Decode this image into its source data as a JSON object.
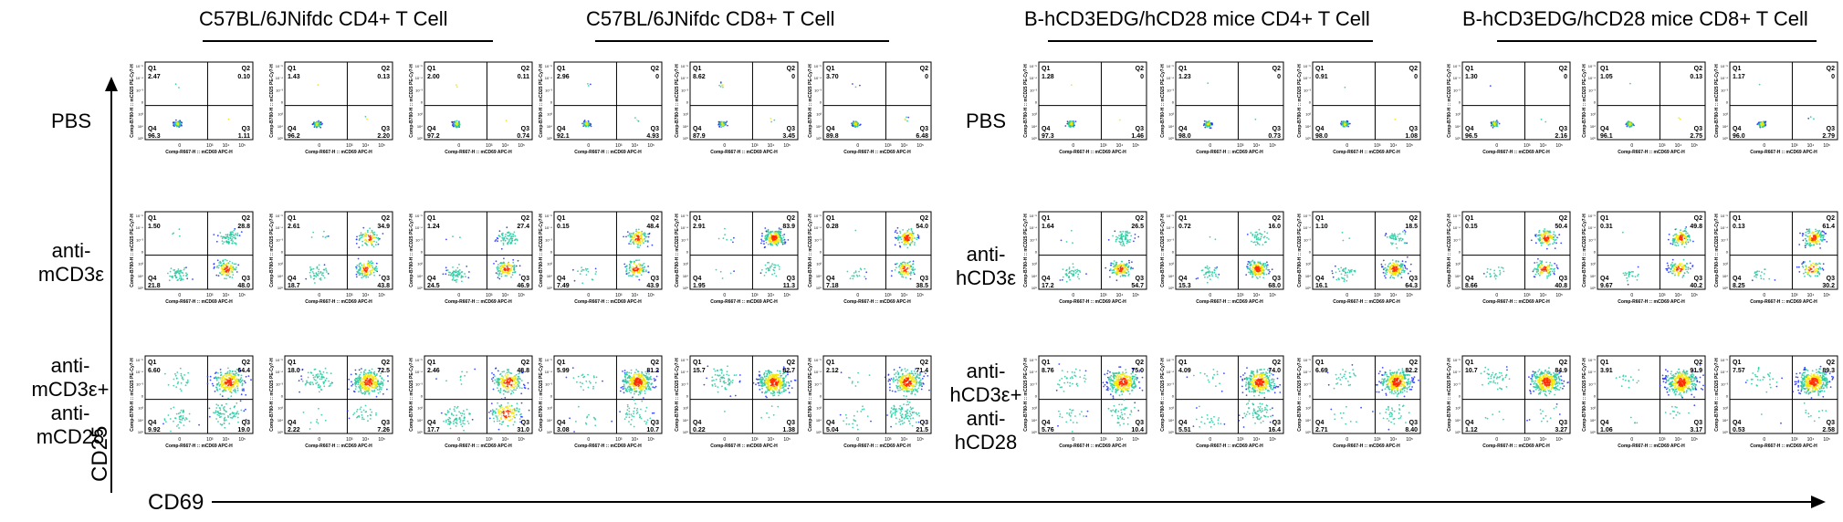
{
  "group_titles": [
    "C57BL/6JNifdc CD4+ T Cell",
    "C57BL/6JNifdc CD8+ T Cell",
    "B-hCD3EDG/hCD28 mice CD4+ T Cell",
    "B-hCD3EDG/hCD28 mice CD8+ T Cell"
  ],
  "row_labels_left": [
    [
      "PBS"
    ],
    [
      "anti-",
      "mCD3ε"
    ],
    [
      "anti-",
      "mCD3ε+",
      "anti-",
      "mCD28"
    ]
  ],
  "row_labels_right": [
    [
      "PBS"
    ],
    [
      "anti-",
      "hCD3ε"
    ],
    [
      "anti-",
      "hCD3ε+",
      "anti-",
      "hCD28"
    ]
  ],
  "y_axis_label": "CD25",
  "x_axis_label": "CD69",
  "plot_text": {
    "x_axis": "Comp-R667-H :: mCD69 APC-H",
    "y_axis": "Comp-B780-H :: mCD25 PE-Cy7-H",
    "quadrants": [
      "Q1",
      "Q2",
      "Q3",
      "Q4"
    ],
    "x_ticks": [
      "0",
      "10³",
      "10⁴",
      "10⁵"
    ],
    "y_ticks": [
      "10⁻⁵",
      "10⁻⁴",
      "10⁻³",
      "0",
      "10³",
      "10⁴",
      "10⁵"
    ]
  },
  "colors": {
    "dots": "#1e2cff",
    "mid": "#27c9a0",
    "high": "#f3e600",
    "peak": "#ff2a00"
  },
  "chart_data": {
    "type": "scatter",
    "columns": [
      "C57BL/6JNifdc CD4+ T Cell",
      "C57BL/6JNifdc CD4+ T Cell",
      "C57BL/6JNifdc CD4+ T Cell",
      "C57BL/6JNifdc CD8+ T Cell",
      "C57BL/6JNifdc CD8+ T Cell",
      "C57BL/6JNifdc CD8+ T Cell",
      "B-hCD3EDG/hCD28 mice CD4+ T Cell",
      "B-hCD3EDG/hCD28 mice CD4+ T Cell",
      "B-hCD3EDG/hCD28 mice CD4+ T Cell",
      "B-hCD3EDG/hCD28 mice CD8+ T Cell",
      "B-hCD3EDG/hCD28 mice CD8+ T Cell",
      "B-hCD3EDG/hCD28 mice CD8+ T Cell"
    ],
    "rows": [
      "PBS",
      "anti-CD3ε",
      "anti-CD3ε+anti-CD28"
    ],
    "quadrant_percent": [
      [
        {
          "q1": "2.47",
          "q2": "0.10",
          "q3": "1.11",
          "q4": "96.3"
        },
        {
          "q1": "1.43",
          "q2": "0.13",
          "q3": "2.20",
          "q4": "96.2"
        },
        {
          "q1": "2.00",
          "q2": "0.11",
          "q3": "0.74",
          "q4": "97.2"
        },
        {
          "q1": "2.96",
          "q2": "0",
          "q3": "4.93",
          "q4": "92.1"
        },
        {
          "q1": "8.62",
          "q2": "0",
          "q3": "3.45",
          "q4": "87.9"
        },
        {
          "q1": "3.70",
          "q2": "0",
          "q3": "6.48",
          "q4": "89.8"
        },
        {
          "q1": "1.28",
          "q2": "0",
          "q3": "1.46",
          "q4": "97.3"
        },
        {
          "q1": "1.23",
          "q2": "0",
          "q3": "0.73",
          "q4": "98.0"
        },
        {
          "q1": "0.91",
          "q2": "0",
          "q3": "1.08",
          "q4": "98.0"
        },
        {
          "q1": "1.30",
          "q2": "0",
          "q3": "2.16",
          "q4": "96.5"
        },
        {
          "q1": "1.05",
          "q2": "0.13",
          "q3": "2.75",
          "q4": "96.1"
        },
        {
          "q1": "1.17",
          "q2": "0",
          "q3": "2.79",
          "q4": "96.0"
        }
      ],
      [
        {
          "q1": "1.50",
          "q2": "28.8",
          "q3": "48.0",
          "q4": "21.8"
        },
        {
          "q1": "2.61",
          "q2": "34.9",
          "q3": "43.8",
          "q4": "18.7"
        },
        {
          "q1": "1.24",
          "q2": "27.4",
          "q3": "46.9",
          "q4": "24.5"
        },
        {
          "q1": "0.15",
          "q2": "48.4",
          "q3": "43.9",
          "q4": "7.49"
        },
        {
          "q1": "2.91",
          "q2": "83.9",
          "q3": "11.3",
          "q4": "1.95"
        },
        {
          "q1": "0.28",
          "q2": "54.0",
          "q3": "38.5",
          "q4": "7.18"
        },
        {
          "q1": "1.64",
          "q2": "26.5",
          "q3": "54.7",
          "q4": "17.2"
        },
        {
          "q1": "0.72",
          "q2": "16.0",
          "q3": "68.0",
          "q4": "15.3"
        },
        {
          "q1": "1.10",
          "q2": "18.5",
          "q3": "64.3",
          "q4": "16.1"
        },
        {
          "q1": "0.15",
          "q2": "50.4",
          "q3": "40.8",
          "q4": "8.66"
        },
        {
          "q1": "0.31",
          "q2": "49.8",
          "q3": "40.2",
          "q4": "9.67"
        },
        {
          "q1": "0.13",
          "q2": "61.4",
          "q3": "30.2",
          "q4": "8.25"
        }
      ],
      [
        {
          "q1": "6.60",
          "q2": "64.4",
          "q3": "19.0",
          "q4": "9.92"
        },
        {
          "q1": "18.0",
          "q2": "72.5",
          "q3": "7.26",
          "q4": "2.22"
        },
        {
          "q1": "2.46",
          "q2": "48.8",
          "q3": "31.0",
          "q4": "17.7"
        },
        {
          "q1": "5.99",
          "q2": "81.2",
          "q3": "10.7",
          "q4": "3.08"
        },
        {
          "q1": "15.7",
          "q2": "82.7",
          "q3": "1.38",
          "q4": "0.22"
        },
        {
          "q1": "2.12",
          "q2": "71.4",
          "q3": "21.5",
          "q4": "5.04"
        },
        {
          "q1": "8.76",
          "q2": "75.0",
          "q3": "10.4",
          "q4": "5.76"
        },
        {
          "q1": "4.09",
          "q2": "74.0",
          "q3": "16.4",
          "q4": "5.51"
        },
        {
          "q1": "6.69",
          "q2": "82.2",
          "q3": "8.40",
          "q4": "2.71"
        },
        {
          "q1": "10.7",
          "q2": "84.9",
          "q3": "3.27",
          "q4": "1.12"
        },
        {
          "q1": "3.91",
          "q2": "91.9",
          "q3": "3.17",
          "q4": "1.06"
        },
        {
          "q1": "7.57",
          "q2": "89.3",
          "q3": "2.58",
          "q4": "0.53"
        }
      ]
    ]
  }
}
